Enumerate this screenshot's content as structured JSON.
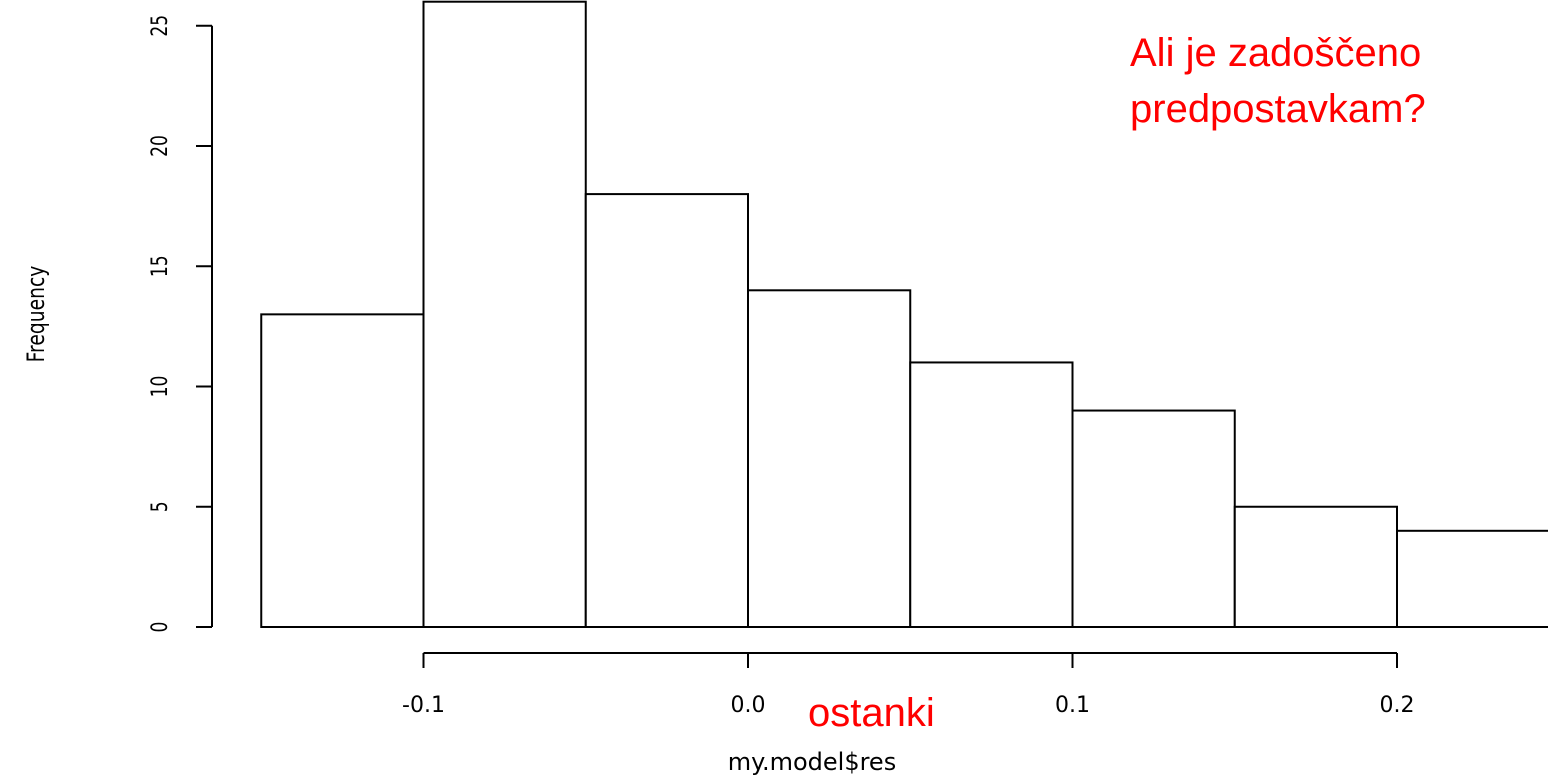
{
  "chart_data": {
    "type": "bar",
    "title": "",
    "xlabel": "my.model$res",
    "ylabel": "Frequency",
    "bins": [
      {
        "start": -0.15,
        "end": -0.1,
        "count": 13
      },
      {
        "start": -0.1,
        "end": -0.05,
        "count": 26
      },
      {
        "start": -0.05,
        "end": 0.0,
        "count": 18
      },
      {
        "start": 0.0,
        "end": 0.05,
        "count": 14
      },
      {
        "start": 0.05,
        "end": 0.1,
        "count": 11
      },
      {
        "start": 0.1,
        "end": 0.15,
        "count": 9
      },
      {
        "start": 0.15,
        "end": 0.2,
        "count": 5
      },
      {
        "start": 0.2,
        "end": 0.25,
        "count": 4
      }
    ],
    "x_ticks": [
      -0.1,
      0.0,
      0.1,
      0.2
    ],
    "x_tick_labels": [
      "-0.1",
      "0.0",
      "0.1",
      "0.2"
    ],
    "y_ticks": [
      0,
      5,
      10,
      15,
      20,
      25
    ],
    "y_tick_labels": [
      "0",
      "5",
      "10",
      "15",
      "20",
      "25"
    ],
    "xlim": [
      -0.15,
      0.25
    ],
    "ylim": [
      0,
      26
    ],
    "grid": false,
    "legend": "none",
    "annotations": {
      "question_line1": "Ali je zadoščeno",
      "question_line2": "predpostavkam?",
      "xlabel_translation": "ostanki"
    },
    "annotation_color": "#ff0000"
  }
}
